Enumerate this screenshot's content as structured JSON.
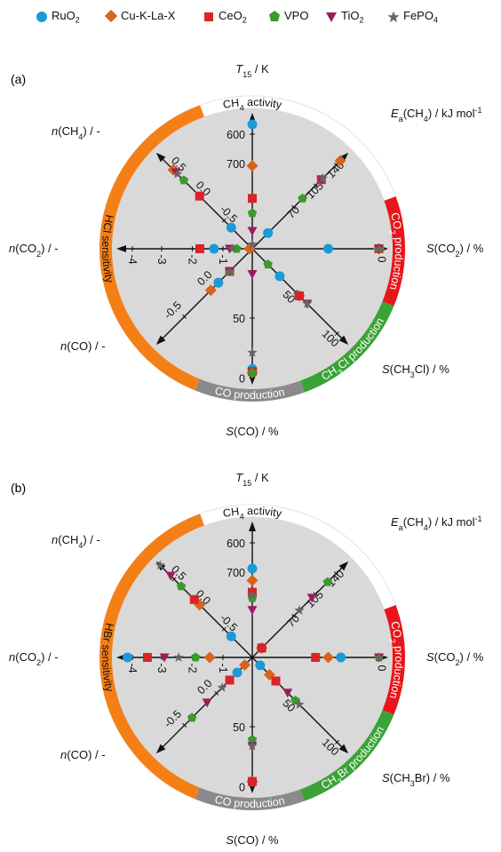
{
  "legend": [
    {
      "name": "RuO",
      "sub": "2",
      "color": "#1a9ad7",
      "marker": "circle"
    },
    {
      "name": "Cu-K-La-X",
      "sub": "",
      "color": "#d8631a",
      "marker": "diamond"
    },
    {
      "name": "CeO",
      "sub": "2",
      "color": "#d8232a",
      "marker": "square"
    },
    {
      "name": "VPO",
      "sub": "",
      "color": "#3a9a2b",
      "marker": "pentagon"
    },
    {
      "name": "TiO",
      "sub": "2",
      "color": "#9b1c5e",
      "marker": "triangle"
    },
    {
      "name": "FePO",
      "sub": "4",
      "color": "#666666",
      "marker": "star"
    }
  ],
  "chart_data": [
    {
      "type": "radar",
      "panel": "(a)",
      "band_labels": {
        "activity": "CH4 activity",
        "co2": "CO2 production",
        "chx": "CH3Cl production",
        "co": "CO production",
        "sens": "HCl sensitivity"
      },
      "axes": [
        {
          "key": "T15",
          "label": "T15 / K",
          "ticks": [
            "600",
            "700"
          ],
          "tickvals": [
            600,
            700
          ]
        },
        {
          "key": "Ea",
          "label": "Ea(CH4) / kJ mol-1",
          "ticks": [
            "70",
            "105",
            "140"
          ]
        },
        {
          "key": "SCO2",
          "label": "S(CO2) / %",
          "ticks": [
            "0"
          ]
        },
        {
          "key": "SCHX",
          "label": "S(CH3Cl) / %",
          "ticks": [
            "50",
            "100"
          ]
        },
        {
          "key": "SCO",
          "label": "S(CO) / %",
          "ticks": [
            "50",
            "0"
          ]
        },
        {
          "key": "nCO",
          "label": "n(CO) / -",
          "ticks": [
            "0.0",
            "-0.5"
          ]
        },
        {
          "key": "nCO2",
          "label": "n(CO2) / -",
          "ticks": [
            "-1",
            "-2",
            "-3",
            "-4"
          ]
        },
        {
          "key": "nCH4",
          "label": "n(CH4) / -",
          "ticks": [
            "-0.5",
            "0.0",
            "0.5"
          ]
        }
      ],
      "series": [
        {
          "name": "RuO2",
          "T15": 580,
          "Ea": 25,
          "SCO2": 40,
          "SCHX": 35,
          "SCO": 5,
          "nCO": -0.15,
          "nCO2": -1.35,
          "nCH4": -0.6
        },
        {
          "name": "Cu-K-La-X",
          "T15": 720,
          "Ea": 140,
          "SCO2": 0,
          "SCHX": 60,
          "SCO": 2,
          "nCO": -0.25,
          "nCO2": -0.1,
          "nCH4": 0.5
        },
        {
          "name": "CeO2",
          "T15": 830,
          "Ea": 110,
          "SCO2": 0,
          "SCHX": 60,
          "SCO": 3,
          "nCO": 0.0,
          "nCO2": -1.85,
          "nCH4": 0.0
        },
        {
          "name": "VPO",
          "T15": 880,
          "Ea": 80,
          "SCO2": 0,
          "SCHX": 20,
          "SCO": 2,
          "nCO": 0.0,
          "nCO2": -0.55,
          "nCH4": 0.3
        },
        {
          "name": "TiO2",
          "T15": 940,
          "Ea": 110,
          "SCO2": 0,
          "SCHX": 70,
          "SCO": 80,
          "nCO": 0.0,
          "nCO2": -0.8,
          "nCH4": 0.45
        },
        {
          "name": "FePO4",
          "T15": 985,
          "Ea": 112,
          "SCO2": 0,
          "SCHX": 70,
          "SCO": 18,
          "nCO": 0.0,
          "nCO2": -0.7,
          "nCH4": 0.42
        }
      ]
    },
    {
      "type": "radar",
      "panel": "(b)",
      "band_labels": {
        "activity": "CH4 activity",
        "co2": "CO2 production",
        "chx": "CH3Br production",
        "co": "CO production",
        "sens": "HBr sensitivity"
      },
      "axes": [
        {
          "key": "T15",
          "label": "T15 / K",
          "ticks": [
            "600",
            "700"
          ]
        },
        {
          "key": "Ea",
          "label": "Ea(CH4) / kJ mol-1",
          "ticks": [
            "70",
            "105",
            "140"
          ]
        },
        {
          "key": "SCO2",
          "label": "S(CO2) / %",
          "ticks": [
            "0"
          ]
        },
        {
          "key": "SCHX",
          "label": "S(CH3Br) / %",
          "ticks": [
            "50",
            "100"
          ]
        },
        {
          "key": "SCO",
          "label": "S(CO) / %",
          "ticks": [
            "50",
            "0"
          ]
        },
        {
          "key": "nCO",
          "label": "n(CO) / -",
          "ticks": [
            "0.0",
            "-0.5"
          ]
        },
        {
          "key": "nCO2",
          "label": "n(CO2) / -",
          "ticks": [
            "-1",
            "-2",
            "-3",
            "-4"
          ]
        },
        {
          "key": "nCH4",
          "label": "n(CH4) / -",
          "ticks": [
            "-0.5",
            "0.0",
            "0.5"
          ]
        }
      ],
      "series": [
        {
          "name": "RuO2",
          "T15": 700,
          "Ea": 15,
          "SCO2": 30,
          "SCHX": 10,
          "SCO": 2,
          "nCO": 0.1,
          "nCO2": -4.4,
          "nCH4": -0.6
        },
        {
          "name": "Cu-K-La-X",
          "T15": 740,
          "Ea": 15,
          "SCO2": 40,
          "SCHX": 22,
          "SCO": 2,
          "nCO": 0.2,
          "nCO2": -1.5,
          "nCH4": 0.0
        },
        {
          "name": "CeO2",
          "T15": 780,
          "Ea": 15,
          "SCO2": 50,
          "SCHX": 30,
          "SCO": 2,
          "nCO": 0.0,
          "nCO2": -3.7,
          "nCH4": 0.1
        },
        {
          "name": "VPO",
          "T15": 800,
          "Ea": 120,
          "SCO2": 0,
          "SCHX": 55,
          "SCO": 35,
          "nCO": -0.5,
          "nCO2": -2.0,
          "nCH4": 0.35
        },
        {
          "name": "TiO2",
          "T15": 840,
          "Ea": 95,
          "SCO2": 0,
          "SCHX": 45,
          "SCO": 30,
          "nCO": -0.3,
          "nCO2": -3.1,
          "nCH4": 0.55
        },
        {
          "name": "FePO4",
          "T15": 790,
          "Ea": 75,
          "SCO2": 0,
          "SCHX": 60,
          "SCO": 30,
          "nCO": -0.1,
          "nCO2": -2.6,
          "nCH4": 0.75
        }
      ]
    }
  ]
}
